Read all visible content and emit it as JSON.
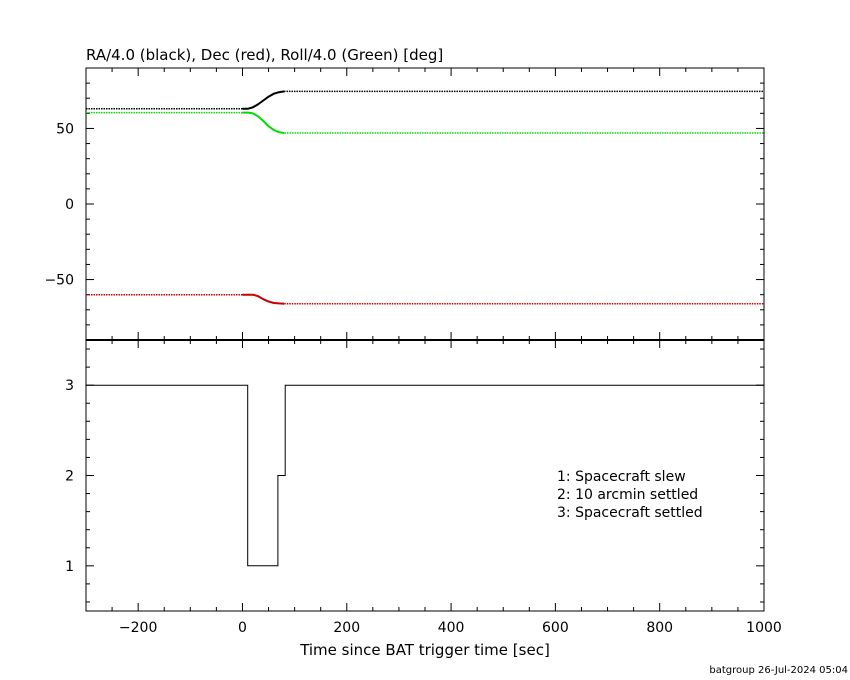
{
  "chart_data": [
    {
      "type": "line",
      "title": "RA/4.0 (black), Dec (red), Roll/4.0 (Green) [deg]",
      "xlim": [
        -300,
        1000
      ],
      "ylim": [
        -90,
        90
      ],
      "yticks": [
        -50,
        0,
        50
      ],
      "ytick_labels": [
        "−50",
        "0",
        "50"
      ],
      "grid": false,
      "series": [
        {
          "color": "#000000",
          "x": [
            -300,
            0,
            10,
            20,
            30,
            40,
            50,
            60,
            70,
            80,
            1000
          ],
          "y": [
            63,
            63,
            63,
            64,
            66,
            68.5,
            71,
            73,
            74,
            74.5,
            74.5
          ]
        },
        {
          "color": "#00dd00",
          "x": [
            -300,
            0,
            10,
            20,
            30,
            40,
            50,
            60,
            70,
            80,
            1000
          ],
          "y": [
            60.5,
            60.5,
            60.5,
            60,
            58,
            55,
            51.5,
            49,
            47.5,
            47,
            47
          ]
        },
        {
          "color": "#cc0000",
          "x": [
            -300,
            0,
            10,
            20,
            30,
            40,
            50,
            60,
            70,
            80,
            1000
          ],
          "y": [
            -60,
            -60,
            -60,
            -60,
            -61,
            -63,
            -64.5,
            -65.5,
            -65.8,
            -66,
            -66
          ]
        }
      ]
    },
    {
      "type": "line",
      "xlabel": "Time since BAT trigger time [sec]",
      "xlim": [
        -300,
        1000
      ],
      "ylim": [
        0.5,
        3.5
      ],
      "xticks": [
        -200,
        0,
        200,
        400,
        600,
        800,
        1000
      ],
      "xtick_labels": [
        "−200",
        "0",
        "200",
        "400",
        "600",
        "800",
        "1000"
      ],
      "yticks": [
        1,
        2,
        3
      ],
      "ytick_labels": [
        "1",
        "2",
        "3"
      ],
      "grid": false,
      "series": [
        {
          "color": "#000000",
          "step": true,
          "x": [
            -300,
            10,
            10,
            68,
            68,
            82,
            82,
            1000
          ],
          "y": [
            3,
            3,
            1,
            1,
            2,
            2,
            3,
            3
          ]
        }
      ],
      "legend": {
        "placement": "right",
        "lines": [
          "1: Spacecraft slew",
          "2: 10 arcmin settled",
          "3: Spacecraft settled"
        ]
      }
    }
  ],
  "footer": "batgroup 26-Jul-2024 05:04"
}
